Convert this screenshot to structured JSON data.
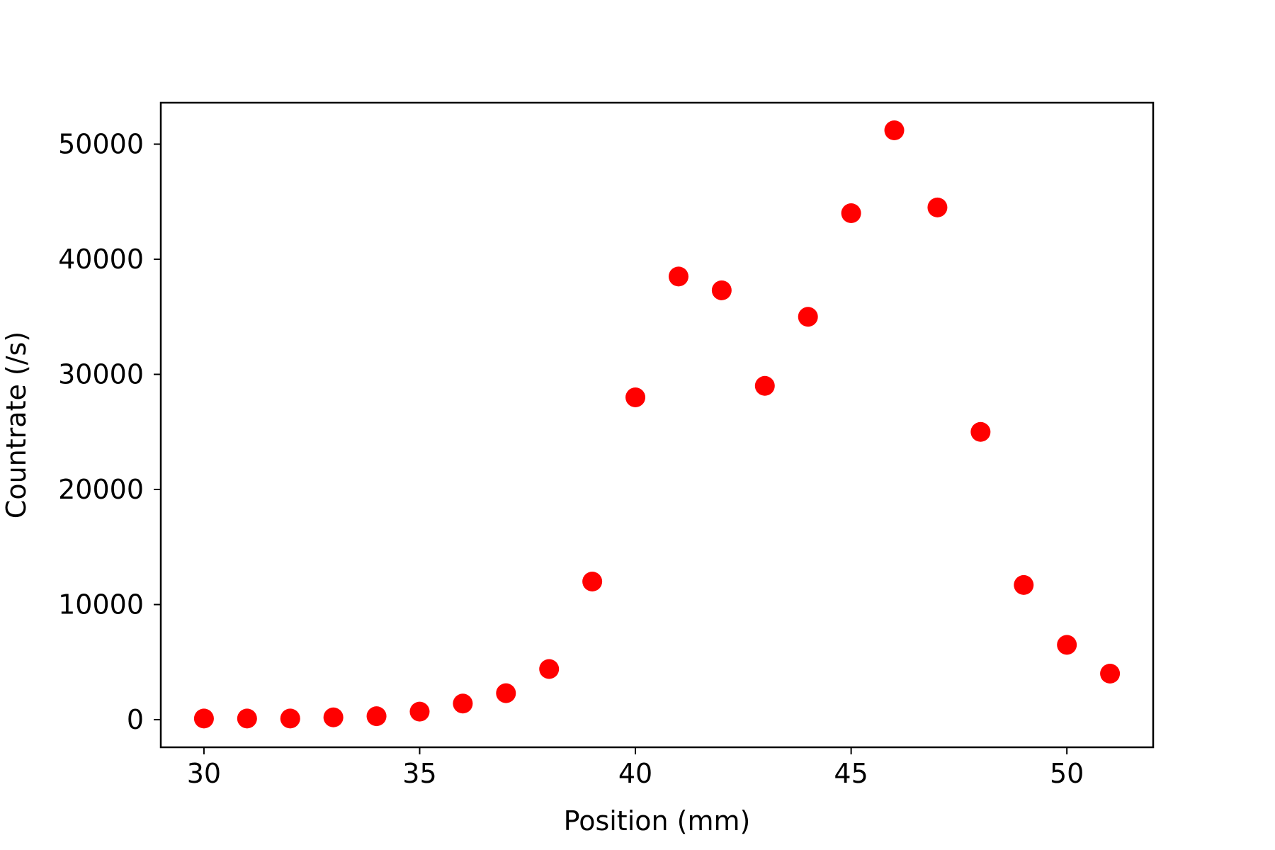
{
  "chart_data": {
    "type": "scatter",
    "title": "",
    "xlabel": "Position (mm)",
    "ylabel": "Countrate (/s)",
    "xlim": [
      29,
      52
    ],
    "ylim": [
      -2400,
      53600
    ],
    "xticks": [
      30,
      35,
      40,
      45,
      50
    ],
    "yticks": [
      0,
      10000,
      20000,
      30000,
      40000,
      50000
    ],
    "grid": false,
    "legend": "none",
    "marker_color": "#ff0000",
    "series": [
      {
        "x": [
          30,
          31,
          32,
          33,
          34,
          35,
          36,
          37,
          38,
          39,
          40,
          41,
          42,
          43,
          44,
          45,
          46,
          47,
          48,
          49,
          50,
          51
        ],
        "y": [
          100,
          100,
          100,
          200,
          300,
          700,
          1400,
          2300,
          4400,
          12000,
          28000,
          38500,
          37300,
          29000,
          35000,
          44000,
          51200,
          44500,
          25000,
          11700,
          6500,
          4000
        ]
      }
    ]
  }
}
